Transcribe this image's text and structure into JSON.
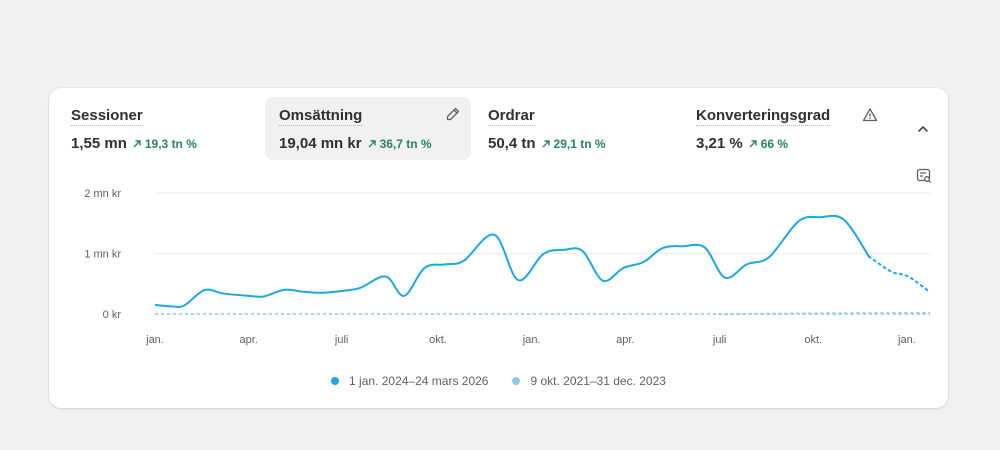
{
  "metrics": [
    {
      "label": "Sessioner",
      "value": "1,55 mn",
      "delta": "19,3 tn %"
    },
    {
      "label": "Omsättning",
      "value": "19,04 mn kr",
      "delta": "36,7 tn %"
    },
    {
      "label": "Ordrar",
      "value": "50,4 tn",
      "delta": "29,1 tn %"
    },
    {
      "label": "Konverteringsgrad",
      "value": "3,21 %",
      "delta": "66 %"
    }
  ],
  "icons": {
    "edit": "pencil-icon",
    "warning": "warning-triangle-icon",
    "collapse": "chevron-up-icon",
    "chart_settings": "chart-search-icon"
  },
  "colors": {
    "current_series": "#1ea7e6",
    "comparison_series": "#8fc9ea",
    "delta_positive": "#29845a",
    "active_tab_bg": "#f1f1f1"
  },
  "chart_data": {
    "type": "line",
    "y_ticks": [
      "2 mn kr",
      "1 mn kr",
      "0 kr"
    ],
    "y_tick_values": [
      2000000,
      1000000,
      0
    ],
    "ylim": [
      0,
      2000000
    ],
    "x_ticks": [
      "jan.",
      "apr.",
      "juli",
      "okt.",
      "jan.",
      "apr.",
      "juli",
      "okt.",
      "jan."
    ],
    "grid": true,
    "legend_position": "bottom",
    "series": [
      {
        "name": "1 jan. 2024–24 mars 2026",
        "color": "#1ea7e6",
        "dashed_after_index": 34,
        "values": [
          150000,
          125000,
          140000,
          395000,
          340000,
          300000,
          290000,
          400000,
          370000,
          350000,
          380000,
          430000,
          620000,
          300000,
          760000,
          820000,
          880000,
          1310000,
          560000,
          990000,
          1060000,
          1040000,
          550000,
          760000,
          860000,
          1090000,
          1120000,
          1100000,
          600000,
          820000,
          940000,
          1530000,
          1600000,
          1560000,
          950000,
          700000,
          620000,
          360000
        ],
        "x": [
          0,
          0.25,
          0.43,
          0.73,
          1,
          1.38,
          1.6,
          1.91,
          2.17,
          2.45,
          2.75,
          3.02,
          3.4,
          3.67,
          3.97,
          4.28,
          4.55,
          5,
          5.35,
          5.72,
          6.02,
          6.3,
          6.6,
          6.9,
          7.2,
          7.48,
          7.78,
          8.1,
          8.4,
          8.72,
          9.05,
          9.48,
          9.8,
          10.15,
          10.52,
          10.85,
          11.1,
          11.42
        ]
      },
      {
        "name": "9 okt. 2021–31 dec. 2023",
        "color": "#8fc9ea",
        "dashed": true,
        "values": [
          0,
          0,
          0,
          0,
          0,
          0,
          0,
          0,
          0,
          0,
          0,
          0,
          0,
          0,
          0,
          0,
          0,
          0,
          0,
          0,
          0,
          0,
          0,
          0,
          0,
          15000,
          15000,
          20000
        ],
        "x": [
          0,
          0.5,
          1,
          1.5,
          2,
          2.5,
          3,
          3.5,
          4,
          4.5,
          5,
          5.5,
          6,
          6.5,
          7,
          7.5,
          8,
          8.5,
          9,
          9.5,
          10,
          10.5,
          11,
          11.42,
          8.3,
          8.6,
          10.5,
          11.42
        ]
      }
    ]
  }
}
